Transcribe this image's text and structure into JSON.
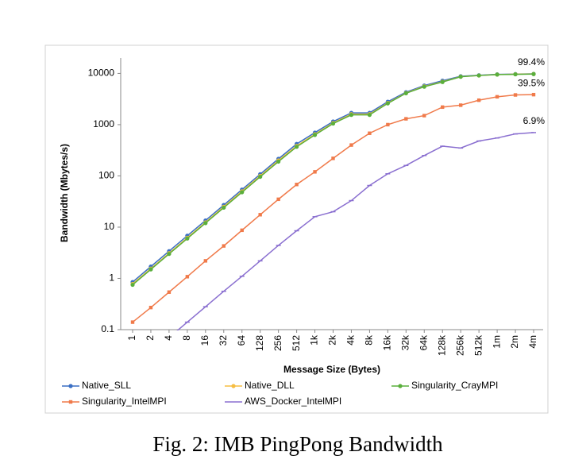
{
  "chart_data": {
    "type": "line",
    "caption": "Fig. 2: IMB PingPong Bandwidth",
    "x_label": "Message Size (Bytes)",
    "y_label": "Bandwidth (Mbytes/s)",
    "log_y": true,
    "ylim": [
      0.1,
      20000
    ],
    "yticks": [
      0.1,
      1,
      10,
      100,
      1000,
      10000
    ],
    "categories": [
      "1",
      "2",
      "4",
      "8",
      "16",
      "32",
      "64",
      "128",
      "256",
      "512",
      "1k",
      "2k",
      "4k",
      "8k",
      "16k",
      "32k",
      "64k",
      "128k",
      "256k",
      "512k",
      "1m",
      "2m",
      "4m"
    ],
    "series": [
      {
        "name": "Native_SLL",
        "color": "#3a6fc4",
        "marker": "circle",
        "values": [
          0.85,
          1.7,
          3.4,
          6.8,
          13.5,
          27,
          54,
          108,
          215,
          420,
          700,
          1150,
          1700,
          1700,
          2800,
          4300,
          5800,
          7200,
          8800,
          9200,
          9600,
          9700,
          9800
        ]
      },
      {
        "name": "Native_DLL",
        "color": "#f6bd42",
        "marker": "circle",
        "values": [
          0.78,
          1.55,
          3.1,
          6.2,
          12.4,
          25,
          50,
          100,
          200,
          385,
          650,
          1080,
          1600,
          1600,
          2650,
          4150,
          5600,
          6900,
          8650,
          9100,
          9500,
          9650,
          9750
        ]
      },
      {
        "name": "Singularity_CrayMPI",
        "color": "#5aaf3c",
        "marker": "circle",
        "values": [
          0.75,
          1.5,
          3.0,
          6.0,
          12,
          24,
          48,
          96,
          190,
          370,
          630,
          1050,
          1550,
          1550,
          2600,
          4100,
          5500,
          6800,
          8600,
          9100,
          9500,
          9600,
          9700
        ]
      },
      {
        "name": "Singularity_IntelMPI",
        "color": "#f07a4a",
        "marker": "square",
        "values": [
          0.14,
          0.27,
          0.54,
          1.08,
          2.2,
          4.3,
          8.7,
          17.5,
          35,
          68,
          120,
          220,
          400,
          680,
          1000,
          1300,
          1500,
          2200,
          2400,
          3000,
          3500,
          3800,
          3850
        ]
      },
      {
        "name": "AWS_Docker_IntelMPI",
        "color": "#8a6fd0",
        "marker": "dash",
        "values": [
          null,
          null,
          0.07,
          0.14,
          0.28,
          0.56,
          1.1,
          2.2,
          4.4,
          8.5,
          16,
          20,
          33,
          65,
          110,
          160,
          250,
          380,
          350,
          480,
          550,
          660,
          700
        ]
      }
    ],
    "annotations": [
      "99.4%",
      "39.5%",
      "6.9%"
    ]
  }
}
